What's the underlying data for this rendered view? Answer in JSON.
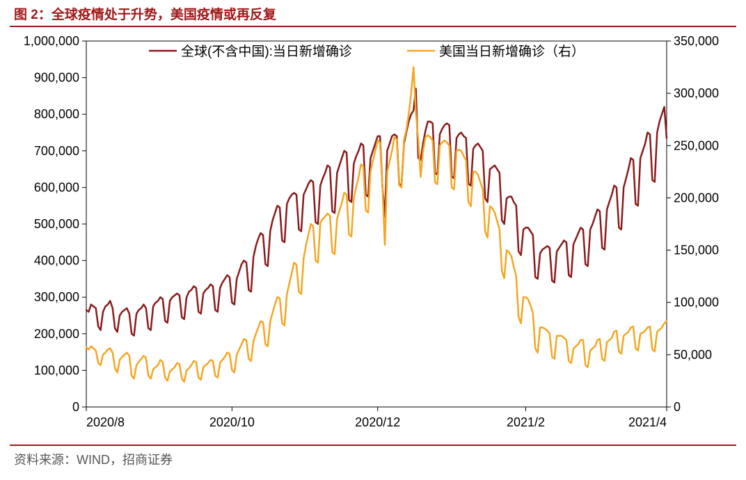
{
  "title_prefix": "图 2：",
  "title_text": "全球疫情处于升势，美国疫情或再反复",
  "source_label": "资料来源：WIND，招商证券",
  "chart": {
    "type": "line",
    "background_color": "#ffffff",
    "plot_border_color": "#000000",
    "tick_color": "#000000",
    "axis_fontsize": 18,
    "legend_fontsize": 19,
    "line_width": 2.5,
    "left_axis": {
      "min": 0,
      "max": 1000000,
      "tick_step": 100000,
      "tick_labels": [
        "0",
        "100,000",
        "200,000",
        "300,000",
        "400,000",
        "500,000",
        "600,000",
        "700,000",
        "800,000",
        "900,000",
        "1,000,000"
      ]
    },
    "right_axis": {
      "min": 0,
      "max": 350000,
      "tick_step": 50000,
      "tick_labels": [
        "0",
        "50,000",
        "100,000",
        "150,000",
        "200,000",
        "250,000",
        "300,000",
        "350,000"
      ]
    },
    "x_axis": {
      "tick_indices": [
        0,
        61,
        122,
        184,
        243
      ],
      "tick_labels": [
        "2020/8",
        "2020/10",
        "2020/12",
        "2021/2",
        "2021/4"
      ],
      "n_points": 244
    },
    "legend": {
      "items": [
        {
          "label": "全球(不含中国):当日新增确诊",
          "color": "#8b1a1a"
        },
        {
          "label": "美国当日新增确诊（右）",
          "color": "#f5a623"
        }
      ]
    },
    "series": [
      {
        "name": "global_ex_china",
        "axis": "left",
        "color": "#8b1a1a",
        "data": [
          265000,
          260000,
          280000,
          275000,
          270000,
          220000,
          210000,
          260000,
          275000,
          280000,
          290000,
          270000,
          215000,
          205000,
          250000,
          260000,
          265000,
          270000,
          255000,
          200000,
          195000,
          255000,
          265000,
          270000,
          280000,
          270000,
          215000,
          210000,
          275000,
          285000,
          290000,
          300000,
          295000,
          235000,
          230000,
          290000,
          300000,
          305000,
          310000,
          305000,
          245000,
          240000,
          300000,
          315000,
          320000,
          330000,
          325000,
          260000,
          255000,
          310000,
          320000,
          325000,
          335000,
          330000,
          265000,
          260000,
          325000,
          340000,
          350000,
          360000,
          355000,
          285000,
          280000,
          350000,
          370000,
          390000,
          400000,
          395000,
          320000,
          315000,
          410000,
          440000,
          460000,
          475000,
          470000,
          390000,
          385000,
          480000,
          510000,
          530000,
          550000,
          545000,
          455000,
          450000,
          555000,
          570000,
          580000,
          585000,
          580000,
          485000,
          480000,
          580000,
          595000,
          610000,
          620000,
          615000,
          505000,
          500000,
          605000,
          625000,
          640000,
          660000,
          655000,
          535000,
          530000,
          640000,
          660000,
          680000,
          700000,
          695000,
          565000,
          560000,
          665000,
          685000,
          700000,
          720000,
          715000,
          580000,
          575000,
          680000,
          700000,
          720000,
          740000,
          740000,
          600000,
          520000,
          700000,
          720000,
          740000,
          745000,
          740000,
          610000,
          605000,
          720000,
          750000,
          780000,
          800000,
          810000,
          870000,
          680000,
          675000,
          720000,
          755000,
          780000,
          780000,
          775000,
          640000,
          635000,
          745000,
          760000,
          770000,
          775000,
          770000,
          630000,
          625000,
          735000,
          745000,
          750000,
          740000,
          735000,
          610000,
          605000,
          705000,
          715000,
          720000,
          710000,
          700000,
          570000,
          560000,
          650000,
          655000,
          660000,
          650000,
          640000,
          510000,
          500000,
          570000,
          575000,
          575000,
          560000,
          550000,
          425000,
          415000,
          485000,
          490000,
          490000,
          480000,
          470000,
          355000,
          350000,
          420000,
          430000,
          435000,
          440000,
          435000,
          345000,
          340000,
          425000,
          435000,
          445000,
          455000,
          450000,
          360000,
          355000,
          445000,
          460000,
          475000,
          490000,
          485000,
          390000,
          385000,
          485000,
          500000,
          520000,
          540000,
          535000,
          435000,
          430000,
          540000,
          560000,
          580000,
          605000,
          600000,
          490000,
          485000,
          600000,
          625000,
          650000,
          680000,
          675000,
          555000,
          550000,
          680000,
          700000,
          720000,
          750000,
          745000,
          620000,
          615000,
          750000,
          780000,
          800000,
          820000,
          735000
        ]
      },
      {
        "name": "us",
        "axis": "right",
        "color": "#f5a623",
        "data": [
          57000,
          55000,
          58000,
          56000,
          54000,
          42000,
          40000,
          50000,
          52000,
          55000,
          56000,
          52000,
          37000,
          33000,
          45000,
          48000,
          50000,
          52000,
          49000,
          30000,
          27000,
          40000,
          43000,
          46000,
          49000,
          47000,
          30000,
          27000,
          36000,
          38000,
          40000,
          45000,
          43000,
          28000,
          25000,
          34000,
          36000,
          38000,
          42000,
          41000,
          27000,
          24000,
          35000,
          37000,
          40000,
          44000,
          43000,
          28000,
          26000,
          38000,
          40000,
          42000,
          45000,
          44000,
          30000,
          28000,
          42000,
          45000,
          48000,
          52000,
          51000,
          35000,
          33000,
          50000,
          55000,
          60000,
          65000,
          64000,
          46000,
          44000,
          63000,
          70000,
          76000,
          82000,
          81000,
          60000,
          58000,
          82000,
          90000,
          98000,
          105000,
          104000,
          80000,
          78000,
          108000,
          118000,
          128000,
          138000,
          136000,
          110000,
          108000,
          142000,
          155000,
          165000,
          175000,
          173000,
          140000,
          138000,
          176000,
          180000,
          182000,
          185000,
          183000,
          148000,
          146000,
          180000,
          188000,
          195000,
          205000,
          203000,
          165000,
          163000,
          200000,
          210000,
          220000,
          232000,
          230000,
          188000,
          186000,
          225000,
          236000,
          245000,
          255000,
          253000,
          210000,
          155000,
          225000,
          235000,
          245000,
          258000,
          256000,
          212000,
          210000,
          255000,
          265000,
          280000,
          300000,
          325000,
          282000,
          255000,
          220000,
          245000,
          258000,
          260000,
          258000,
          255000,
          215000,
          213000,
          250000,
          253000,
          255000,
          253000,
          250000,
          210000,
          208000,
          245000,
          246000,
          245000,
          240000,
          236000,
          196000,
          192000,
          225000,
          225000,
          222000,
          215000,
          208000,
          168000,
          162000,
          192000,
          190000,
          186000,
          178000,
          170000,
          130000,
          123000,
          150000,
          148000,
          144000,
          134000,
          125000,
          86000,
          80000,
          105000,
          105000,
          103000,
          97000,
          90000,
          56000,
          52000,
          76000,
          76000,
          75000,
          73000,
          70000,
          48000,
          46000,
          68000,
          68000,
          68000,
          66000,
          64000,
          44000,
          42000,
          56000,
          58000,
          60000,
          64000,
          64000,
          40000,
          38000,
          54000,
          56000,
          58000,
          64000,
          65000,
          46000,
          44000,
          62000,
          64000,
          66000,
          72000,
          73000,
          53000,
          51000,
          68000,
          70000,
          72000,
          76000,
          77000,
          56000,
          54000,
          70000,
          71000,
          73000,
          76000,
          77000,
          55000,
          53000,
          72000,
          74000,
          76000,
          80000,
          82000
        ]
      }
    ]
  }
}
